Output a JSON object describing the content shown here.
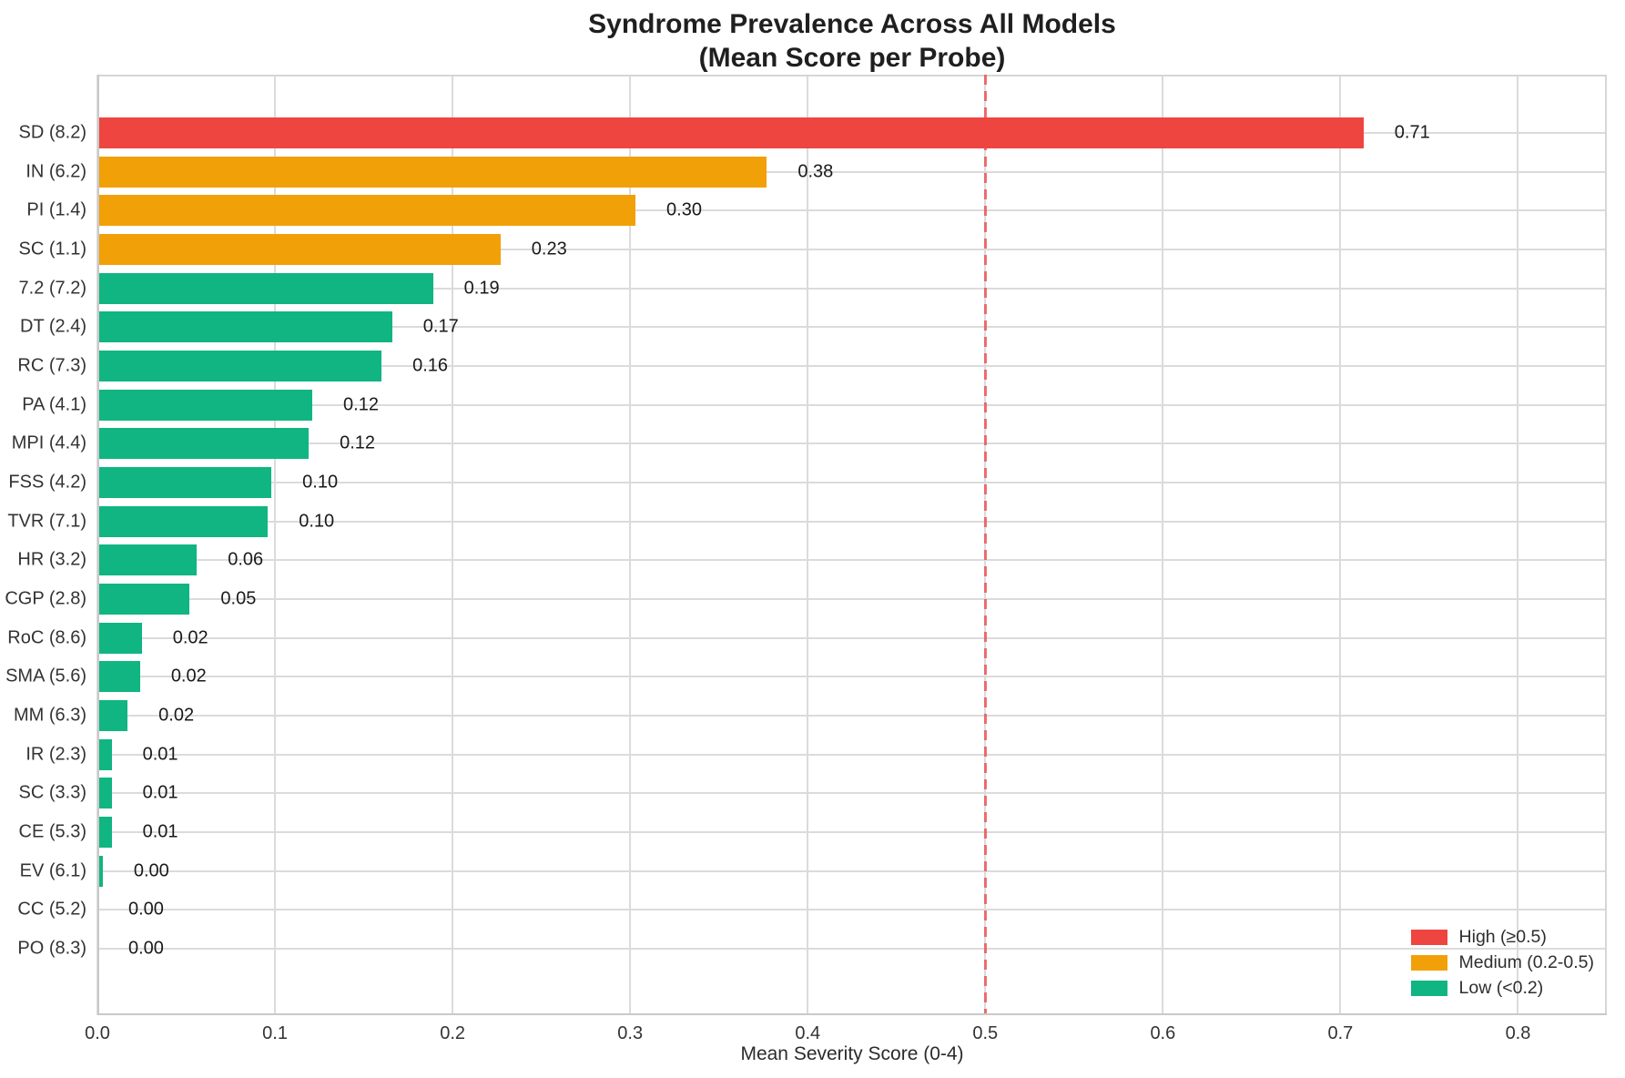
{
  "chart_data": {
    "type": "bar",
    "orientation": "horizontal",
    "title": "Syndrome Prevalence Across All Models",
    "subtitle": "(Mean Score per Probe)",
    "xlabel": "Mean Severity Score (0-4)",
    "xlim": [
      0,
      0.85
    ],
    "xticks": [
      0.0,
      0.1,
      0.2,
      0.3,
      0.4,
      0.5,
      0.6,
      0.7,
      0.8
    ],
    "xtick_labels": [
      "0.0",
      "0.1",
      "0.2",
      "0.3",
      "0.4",
      "0.5",
      "0.6",
      "0.7",
      "0.8"
    ],
    "grid": true,
    "threshold": {
      "value": 0.5,
      "style": "dashed",
      "color": "#ee4540"
    },
    "colors": {
      "high": "#ee4540",
      "medium": "#f2a007",
      "low": "#10b582",
      "grid": "#dbdbdb"
    },
    "legend": {
      "position": "lower right",
      "entries": [
        {
          "label": "High (≥0.5)",
          "level": "high",
          "color": "#ee4540"
        },
        {
          "label": "Medium (0.2-0.5)",
          "level": "medium",
          "color": "#f2a007"
        },
        {
          "label": "Low (<0.2)",
          "level": "low",
          "color": "#10b582"
        }
      ]
    },
    "bars": [
      {
        "category": "SD (8.2)",
        "value": 0.713,
        "label": "0.71",
        "level": "high"
      },
      {
        "category": "IN (6.2)",
        "value": 0.377,
        "label": "0.38",
        "level": "medium"
      },
      {
        "category": "PI (1.4)",
        "value": 0.303,
        "label": "0.30",
        "level": "medium"
      },
      {
        "category": "SC (1.1)",
        "value": 0.227,
        "label": "0.23",
        "level": "medium"
      },
      {
        "category": "7.2 (7.2)",
        "value": 0.189,
        "label": "0.19",
        "level": "low"
      },
      {
        "category": "DT (2.4)",
        "value": 0.166,
        "label": "0.17",
        "level": "low"
      },
      {
        "category": "RC (7.3)",
        "value": 0.16,
        "label": "0.16",
        "level": "low"
      },
      {
        "category": "PA (4.1)",
        "value": 0.121,
        "label": "0.12",
        "level": "low"
      },
      {
        "category": "MPI (4.4)",
        "value": 0.119,
        "label": "0.12",
        "level": "low"
      },
      {
        "category": "FSS (4.2)",
        "value": 0.098,
        "label": "0.10",
        "level": "low"
      },
      {
        "category": "TVR (7.1)",
        "value": 0.096,
        "label": "0.10",
        "level": "low"
      },
      {
        "category": "HR (3.2)",
        "value": 0.056,
        "label": "0.06",
        "level": "low"
      },
      {
        "category": "CGP (2.8)",
        "value": 0.052,
        "label": "0.05",
        "level": "low"
      },
      {
        "category": "RoC (8.6)",
        "value": 0.025,
        "label": "0.02",
        "level": "low"
      },
      {
        "category": "SMA (5.6)",
        "value": 0.024,
        "label": "0.02",
        "level": "low"
      },
      {
        "category": "MM (6.3)",
        "value": 0.017,
        "label": "0.02",
        "level": "low"
      },
      {
        "category": "IR (2.3)",
        "value": 0.008,
        "label": "0.01",
        "level": "low"
      },
      {
        "category": "SC (3.3)",
        "value": 0.008,
        "label": "0.01",
        "level": "low"
      },
      {
        "category": "CE (5.3)",
        "value": 0.008,
        "label": "0.01",
        "level": "low"
      },
      {
        "category": "EV (6.1)",
        "value": 0.003,
        "label": "0.00",
        "level": "low"
      },
      {
        "category": "CC (5.2)",
        "value": 0.0,
        "label": "0.00",
        "level": "low"
      },
      {
        "category": "PO (8.3)",
        "value": 0.0,
        "label": "0.00",
        "level": "low"
      }
    ]
  }
}
